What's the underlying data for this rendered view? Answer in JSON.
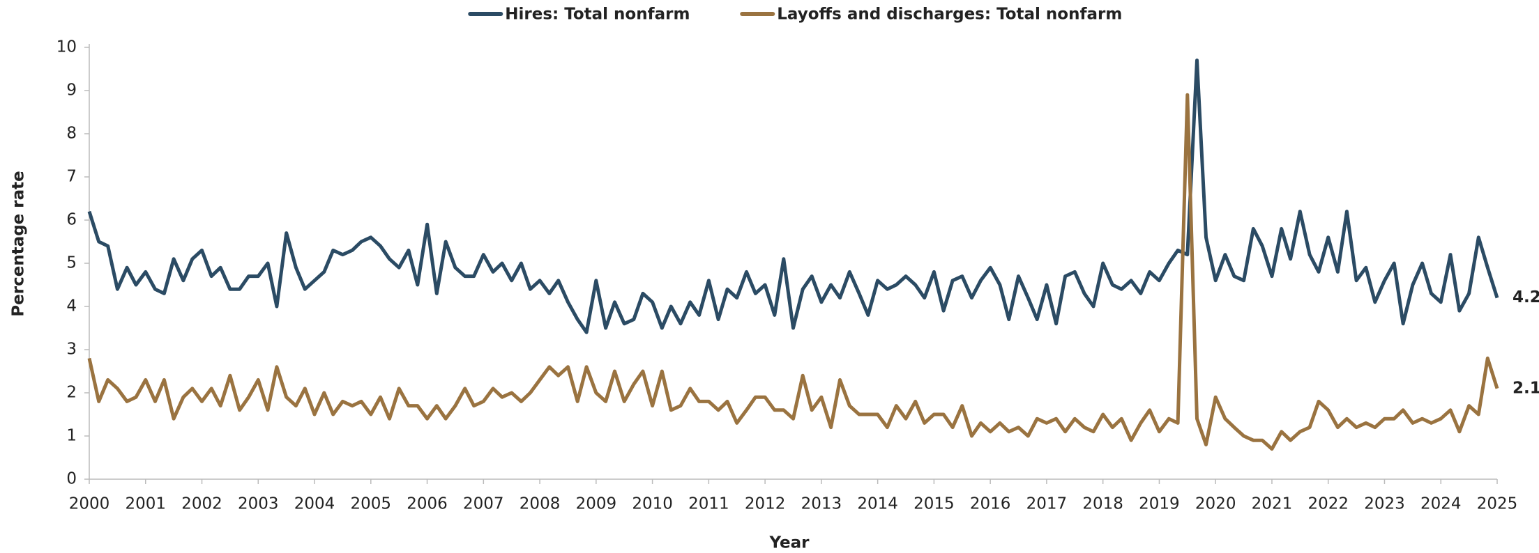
{
  "chart_data": {
    "type": "line",
    "xlabel": "Year",
    "ylabel": "Percentage rate",
    "x": [
      2000,
      2000.17,
      2000.33,
      2000.5,
      2000.67,
      2000.83,
      2001,
      2001.17,
      2001.33,
      2001.5,
      2001.67,
      2001.83,
      2002,
      2002.17,
      2002.33,
      2002.5,
      2002.67,
      2002.83,
      2003,
      2003.17,
      2003.33,
      2003.5,
      2003.67,
      2003.83,
      2004,
      2004.17,
      2004.33,
      2004.5,
      2004.67,
      2004.83,
      2005,
      2005.17,
      2005.33,
      2005.5,
      2005.67,
      2005.83,
      2006,
      2006.17,
      2006.33,
      2006.5,
      2006.67,
      2006.83,
      2007,
      2007.17,
      2007.33,
      2007.5,
      2007.67,
      2007.83,
      2008,
      2008.17,
      2008.33,
      2008.5,
      2008.67,
      2008.83,
      2009,
      2009.17,
      2009.33,
      2009.5,
      2009.67,
      2009.83,
      2010,
      2010.17,
      2010.33,
      2010.5,
      2010.67,
      2010.83,
      2011,
      2011.17,
      2011.33,
      2011.5,
      2011.67,
      2011.83,
      2012,
      2012.17,
      2012.33,
      2012.5,
      2012.67,
      2012.83,
      2013,
      2013.17,
      2013.33,
      2013.5,
      2013.67,
      2013.83,
      2014,
      2014.17,
      2014.33,
      2014.5,
      2014.67,
      2014.83,
      2015,
      2015.17,
      2015.33,
      2015.5,
      2015.67,
      2015.83,
      2016,
      2016.17,
      2016.33,
      2016.5,
      2016.67,
      2016.83,
      2017,
      2017.17,
      2017.33,
      2017.5,
      2017.67,
      2017.83,
      2018,
      2018.17,
      2018.33,
      2018.5,
      2018.67,
      2018.83,
      2019,
      2019.17,
      2019.33,
      2019.5,
      2019.67,
      2019.83,
      2020,
      2020.17,
      2020.33,
      2020.5,
      2020.67,
      2020.83,
      2021,
      2021.17,
      2021.33,
      2021.5,
      2021.67,
      2021.83,
      2022,
      2022.17,
      2022.33,
      2022.5,
      2022.67,
      2022.83,
      2023,
      2023.17,
      2023.33,
      2023.5,
      2023.67,
      2023.83,
      2024,
      2024.17,
      2024.33,
      2024.5,
      2024.67,
      2024.83,
      2025
    ],
    "series": [
      {
        "name": "Hires: Total nonfarm",
        "color": "#2b4b64",
        "values": [
          6.2,
          5.5,
          5.4,
          4.4,
          4.9,
          4.5,
          4.8,
          4.4,
          4.3,
          5.1,
          4.6,
          5.1,
          5.3,
          4.7,
          4.9,
          4.4,
          4.4,
          4.7,
          4.7,
          5.0,
          4.0,
          5.7,
          4.9,
          4.4,
          4.6,
          4.8,
          5.3,
          5.2,
          5.3,
          5.5,
          5.6,
          5.4,
          5.1,
          4.9,
          5.3,
          4.5,
          5.9,
          4.3,
          5.5,
          4.9,
          4.7,
          4.7,
          5.2,
          4.8,
          5.0,
          4.6,
          5.0,
          4.4,
          4.6,
          4.3,
          4.6,
          4.1,
          3.7,
          3.4,
          4.6,
          3.5,
          4.1,
          3.6,
          3.7,
          4.3,
          4.1,
          3.5,
          4.0,
          3.6,
          4.1,
          3.8,
          4.6,
          3.7,
          4.4,
          4.2,
          4.8,
          4.3,
          4.5,
          3.8,
          5.1,
          3.5,
          4.4,
          4.7,
          4.1,
          4.5,
          4.2,
          4.8,
          4.3,
          3.8,
          4.6,
          4.4,
          4.5,
          4.7,
          4.5,
          4.2,
          4.8,
          3.9,
          4.6,
          4.7,
          4.2,
          4.6,
          4.9,
          4.5,
          3.7,
          4.7,
          4.2,
          3.7,
          4.5,
          3.6,
          4.7,
          4.8,
          4.3,
          4.0,
          5.0,
          4.5,
          4.4,
          4.6,
          4.3,
          4.8,
          4.6,
          5.0,
          5.3,
          5.2,
          9.7,
          5.6,
          4.6,
          5.2,
          4.7,
          4.6,
          5.8,
          5.4,
          4.7,
          5.8,
          5.1,
          6.2,
          5.2,
          4.8,
          5.6,
          4.8,
          6.2,
          4.6,
          4.9,
          4.1,
          4.6,
          5.0,
          3.6,
          4.5,
          5.0,
          4.3,
          4.1,
          5.2,
          3.9,
          4.3,
          5.6,
          4.9,
          4.2
        ]
      },
      {
        "name": "Layoffs and discharges: Total nonfarm",
        "color": "#9a7340",
        "values": [
          2.8,
          1.8,
          2.3,
          2.1,
          1.8,
          1.9,
          2.3,
          1.8,
          2.3,
          1.4,
          1.9,
          2.1,
          1.8,
          2.1,
          1.7,
          2.4,
          1.6,
          1.9,
          2.3,
          1.6,
          2.6,
          1.9,
          1.7,
          2.1,
          1.5,
          2.0,
          1.5,
          1.8,
          1.7,
          1.8,
          1.5,
          1.9,
          1.4,
          2.1,
          1.7,
          1.7,
          1.4,
          1.7,
          1.4,
          1.7,
          2.1,
          1.7,
          1.8,
          2.1,
          1.9,
          2.0,
          1.8,
          2.0,
          2.3,
          2.6,
          2.4,
          2.6,
          1.8,
          2.6,
          2.0,
          1.8,
          2.5,
          1.8,
          2.2,
          2.5,
          1.7,
          2.5,
          1.6,
          1.7,
          2.1,
          1.8,
          1.8,
          1.6,
          1.8,
          1.3,
          1.6,
          1.9,
          1.9,
          1.6,
          1.6,
          1.4,
          2.4,
          1.6,
          1.9,
          1.2,
          2.3,
          1.7,
          1.5,
          1.5,
          1.5,
          1.2,
          1.7,
          1.4,
          1.8,
          1.3,
          1.5,
          1.5,
          1.2,
          1.7,
          1.0,
          1.3,
          1.1,
          1.3,
          1.1,
          1.2,
          1.0,
          1.4,
          1.3,
          1.4,
          1.1,
          1.4,
          1.2,
          1.1,
          1.5,
          1.2,
          1.4,
          0.9,
          1.3,
          1.6,
          1.1,
          1.4,
          1.3,
          8.9,
          1.4,
          0.8,
          1.9,
          1.4,
          1.2,
          1.0,
          0.9,
          0.9,
          0.7,
          1.1,
          0.9,
          1.1,
          1.2,
          1.8,
          1.6,
          1.2,
          1.4,
          1.2,
          1.3,
          1.2,
          1.4,
          1.4,
          1.6,
          1.3,
          1.4,
          1.3,
          1.4,
          1.6,
          1.1,
          1.7,
          1.5,
          2.8,
          2.1
        ]
      }
    ],
    "xlim": [
      2000,
      2025
    ],
    "xticks": [
      2000,
      2001,
      2002,
      2003,
      2004,
      2005,
      2006,
      2007,
      2008,
      2009,
      2010,
      2011,
      2012,
      2013,
      2014,
      2015,
      2016,
      2017,
      2018,
      2019,
      2020,
      2021,
      2022,
      2023,
      2024,
      2025
    ],
    "ylim": [
      0,
      10
    ],
    "yticks": [
      0,
      1,
      2,
      3,
      4,
      5,
      6,
      7,
      8,
      9,
      10
    ],
    "grid": false,
    "legend": "top"
  }
}
